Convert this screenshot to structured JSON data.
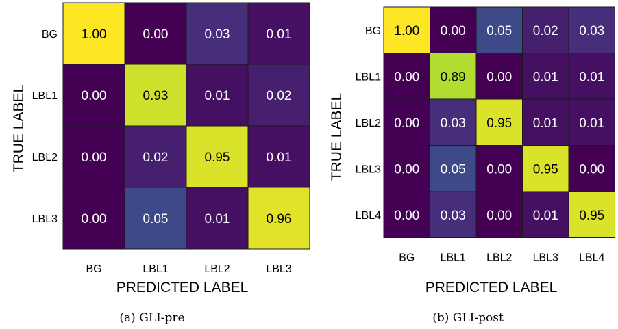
{
  "chart_data": [
    {
      "type": "heatmap",
      "caption": "(a) GLI-pre",
      "xlabel": "PREDICTED LABEL",
      "ylabel": "TRUE LABEL",
      "x_categories": [
        "BG",
        "LBL1",
        "LBL2",
        "LBL3"
      ],
      "y_categories": [
        "BG",
        "LBL1",
        "LBL2",
        "LBL3"
      ],
      "values": [
        [
          1.0,
          0.0,
          0.03,
          0.01
        ],
        [
          0.0,
          0.93,
          0.01,
          0.02
        ],
        [
          0.0,
          0.02,
          0.95,
          0.01
        ],
        [
          0.0,
          0.05,
          0.01,
          0.96
        ]
      ],
      "labels": [
        [
          "1.00",
          "0.00",
          "0.03",
          "0.01"
        ],
        [
          "0.00",
          "0.93",
          "0.01",
          "0.02"
        ],
        [
          "0.00",
          "0.02",
          "0.95",
          "0.01"
        ],
        [
          "0.00",
          "0.05",
          "0.01",
          "0.96"
        ]
      ],
      "colormap": "viridis",
      "vrange": [
        0,
        1
      ]
    },
    {
      "type": "heatmap",
      "caption": "(b) GLI-post",
      "xlabel": "PREDICTED LABEL",
      "ylabel": "TRUE LABEL",
      "x_categories": [
        "BG",
        "LBL1",
        "LBL2",
        "LBL3",
        "LBL4"
      ],
      "y_categories": [
        "BG",
        "LBL1",
        "LBL2",
        "LBL3",
        "LBL4"
      ],
      "values": [
        [
          1.0,
          0.0,
          0.05,
          0.02,
          0.03
        ],
        [
          0.0,
          0.89,
          0.0,
          0.01,
          0.01
        ],
        [
          0.0,
          0.03,
          0.95,
          0.01,
          0.01
        ],
        [
          0.0,
          0.05,
          0.0,
          0.95,
          0.0
        ],
        [
          0.0,
          0.03,
          0.0,
          0.01,
          0.95
        ]
      ],
      "labels": [
        [
          "1.00",
          "0.00",
          "0.05",
          "0.02",
          "0.03"
        ],
        [
          "0.00",
          "0.89",
          "0.00",
          "0.01",
          "0.01"
        ],
        [
          "0.00",
          "0.03",
          "0.95",
          "0.01",
          "0.01"
        ],
        [
          "0.00",
          "0.05",
          "0.00",
          "0.95",
          "0.00"
        ],
        [
          "0.00",
          "0.03",
          "0.00",
          "0.01",
          "0.95"
        ]
      ],
      "colormap": "viridis",
      "vrange": [
        0,
        1
      ]
    }
  ]
}
